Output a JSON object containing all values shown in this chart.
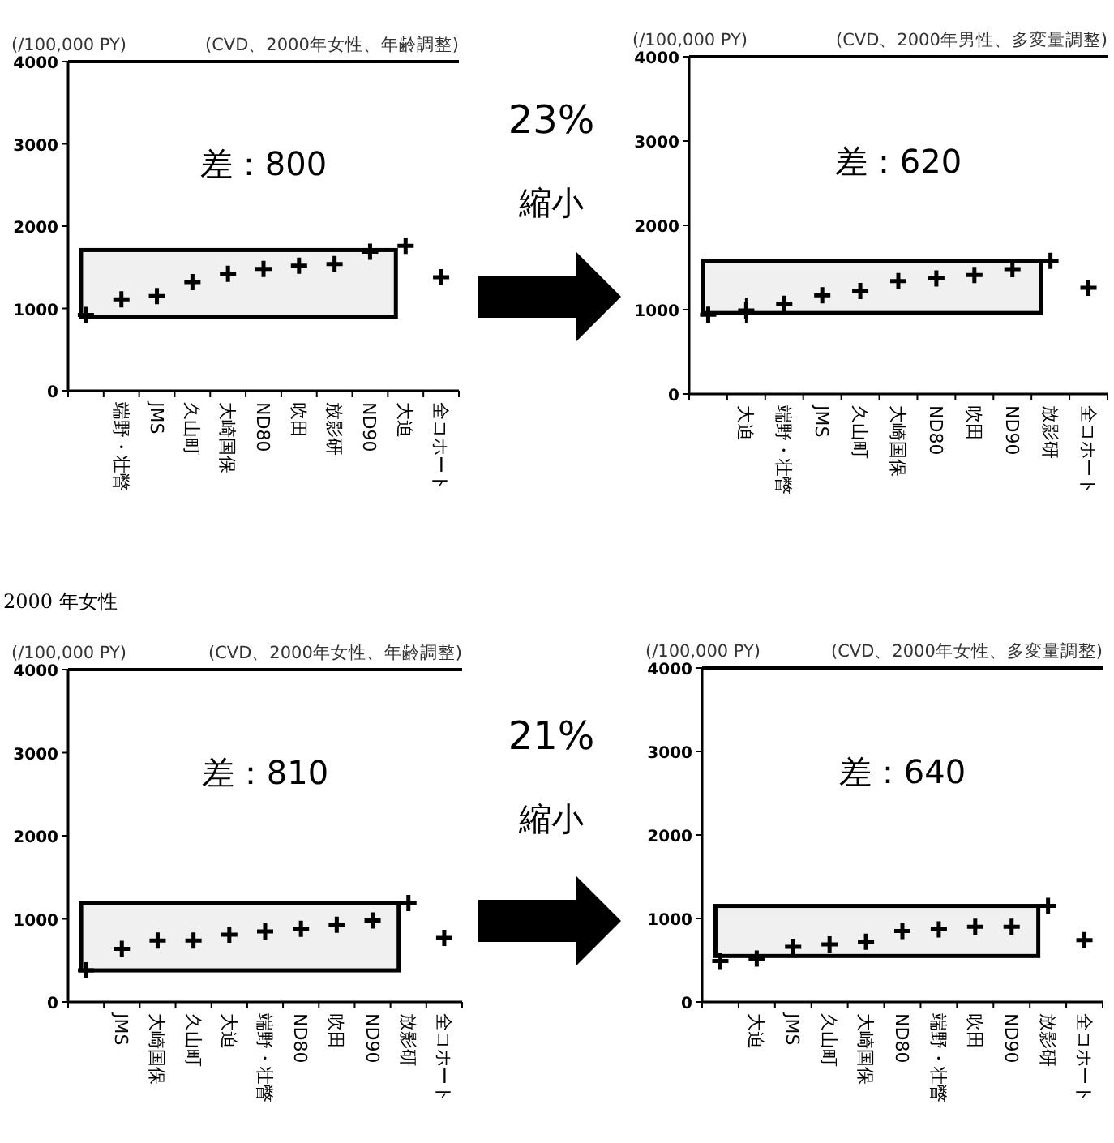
{
  "chart_data": [
    {
      "type": "scatter",
      "subtitle": "(CVD、2000年女性、年齢調整)",
      "ylabel": "(/100,000 PY)",
      "categories": [
        null,
        "端野・壮瞥",
        "JMS",
        "久山町",
        "大崎国保",
        "ND80",
        "吹田",
        "放影研",
        "ND90",
        "大迫",
        "全コホート"
      ],
      "values": [
        920,
        1110,
        1150,
        1320,
        1420,
        1480,
        1520,
        1540,
        1690,
        1760,
        1380
      ],
      "ylim": [
        0,
        4000
      ],
      "yticks": [
        0,
        1000,
        2000,
        3000,
        4000
      ],
      "marker": "cross",
      "grid": false,
      "bands": [
        {
          "axis": "y",
          "from": 900,
          "to": 1710,
          "label": "差：800"
        }
      ]
    },
    {
      "type": "other",
      "annotations": [
        "23%",
        "縮小"
      ]
    },
    {
      "type": "scatter",
      "subtitle": "(CVD、2000年男性、多変量調整)",
      "ylabel": "(/100,000 PY)",
      "categories": [
        null,
        "大迫",
        "端野・壮瞥",
        "JMS",
        "久山町",
        "大崎国保",
        "ND80",
        "吹田",
        "ND90",
        "放影研",
        "全コホート"
      ],
      "values": [
        940,
        990,
        1070,
        1170,
        1220,
        1340,
        1370,
        1410,
        1480,
        1580,
        1260
      ],
      "errors": [
        null,
        150,
        null,
        null,
        null,
        null,
        null,
        null,
        null,
        null,
        null
      ],
      "ylim": [
        0,
        4000
      ],
      "yticks": [
        0,
        1000,
        2000,
        3000,
        4000
      ],
      "marker": "cross",
      "grid": false,
      "bands": [
        {
          "axis": "y",
          "from": 960,
          "to": 1580,
          "label": "差：620"
        }
      ]
    },
    {
      "type": "scatter",
      "title": "2000 年女性",
      "subtitle": "(CVD、2000年女性、年齢調整)",
      "ylabel": "(/100,000 PY)",
      "categories": [
        null,
        "JMS",
        "大崎国保",
        "久山町",
        "大迫",
        "端野・壮瞥",
        "ND80",
        "吹田",
        "ND90",
        "放影研",
        "全コホート"
      ],
      "values": [
        380,
        640,
        740,
        740,
        810,
        850,
        880,
        930,
        980,
        1190,
        770
      ],
      "ylim": [
        0,
        4000
      ],
      "yticks": [
        0,
        1000,
        2000,
        3000,
        4000
      ],
      "marker": "cross",
      "grid": false,
      "bands": [
        {
          "axis": "y",
          "from": 380,
          "to": 1190,
          "label": "差：810"
        }
      ]
    },
    {
      "type": "other",
      "annotations": [
        "21%",
        "縮小"
      ]
    },
    {
      "type": "scatter",
      "subtitle": "(CVD、2000年女性、多変量調整)",
      "ylabel": "(/100,000 PY)",
      "categories": [
        null,
        "大迫",
        "JMS",
        "久山町",
        "大崎国保",
        "ND80",
        "端野・壮瞥",
        "吹田",
        "ND90",
        "放影研",
        "全コホート"
      ],
      "values": [
        490,
        520,
        660,
        690,
        720,
        850,
        870,
        900,
        900,
        1150,
        740
      ],
      "errors": [
        null,
        70,
        null,
        null,
        null,
        null,
        null,
        null,
        null,
        null,
        null
      ],
      "ylim": [
        0,
        4000
      ],
      "yticks": [
        0,
        1000,
        2000,
        3000,
        4000
      ],
      "marker": "cross",
      "grid": false,
      "bands": [
        {
          "axis": "y",
          "from": 550,
          "to": 1150,
          "label": "差：640"
        }
      ]
    }
  ]
}
